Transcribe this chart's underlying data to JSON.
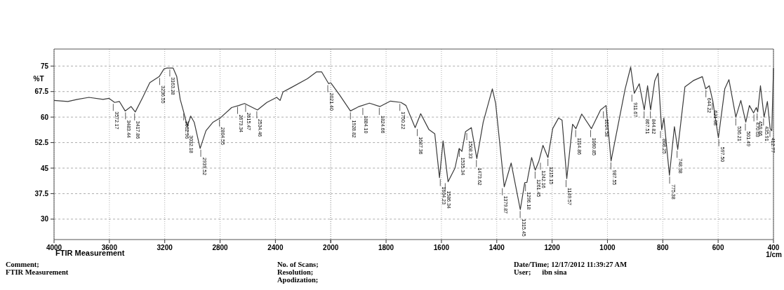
{
  "chart_data": [
    {
      "type": "line",
      "ylabel": "%T",
      "xlim": [
        4000,
        2000
      ],
      "xticks": [
        4000,
        3600,
        3200,
        2800,
        2400,
        2000
      ],
      "ylim": [
        24,
        80
      ],
      "yticks": [
        30,
        37.5,
        45,
        52.5,
        60,
        67.5,
        75
      ],
      "grid": true,
      "line_style": "solid",
      "marker": "none",
      "series": [
        {
          "color": "#3a3a3a",
          "x": [
            4000,
            3900,
            3832,
            3748,
            3646,
            3602,
            3562,
            3528,
            3486,
            3443,
            3413,
            3359,
            3308,
            3240,
            3206,
            3186,
            3139,
            3113,
            3088,
            3063,
            3037,
            3012,
            2987,
            2944,
            2902,
            2851,
            2800,
            2716,
            2665,
            2623,
            2530,
            2462,
            2391,
            2366,
            2345,
            2289,
            2168,
            2102,
            2066,
            2015,
            2000
          ],
          "values": [
            64.9,
            64.6,
            65.2,
            65.8,
            65.2,
            65.5,
            64.3,
            64.6,
            61.8,
            63.1,
            61.5,
            65.8,
            70.1,
            71.9,
            74.1,
            74.4,
            74.4,
            71.9,
            65.2,
            61.5,
            57.3,
            60.3,
            58.5,
            50.8,
            56.0,
            58.5,
            59.7,
            62.8,
            63.4,
            64.0,
            62.1,
            64.3,
            65.8,
            64.9,
            67.4,
            68.6,
            71.3,
            73.3,
            73.3,
            69.8,
            70.1
          ]
        }
      ],
      "annotations": [
        "FTIR Measurement",
        "Comment;",
        "FTIR Measurement",
        "No. of Scans;",
        "Resolution;",
        "Apodization;",
        "Date/Time; 12/17/2012 11:39:27 AM",
        "User;      ibn sina",
        {
          "text": "3572.17",
          "x": 3572.17,
          "y": 64.3
        },
        {
          "text": "3483.44",
          "x": 3483.44,
          "y": 61.8
        },
        {
          "text": "3417.86",
          "x": 3417.86,
          "y": 61.5
        },
        {
          "text": "3236.55",
          "x": 3236.55,
          "y": 71.9
        },
        {
          "text": "3163.28",
          "x": 3163.28,
          "y": 74.4
        },
        {
          "text": "3062.96",
          "x": 3062.96,
          "y": 61.5
        },
        {
          "text": "3032.18",
          "x": 3032.18,
          "y": 57.3
        },
        {
          "text": "2939.52",
          "x": 2939.52,
          "y": 50.8
        },
        {
          "text": "2804.55",
          "x": 2804.55,
          "y": 59.7
        },
        {
          "text": "2673.34",
          "x": 2673.34,
          "y": 63.4
        },
        {
          "text": "2615.47",
          "x": 2615.47,
          "y": 64.0
        },
        {
          "text": "2534.46",
          "x": 2534.46,
          "y": 62.1
        },
        {
          "text": "2021.40",
          "x": 2021.4,
          "y": 69.8
        }
      ]
    },
    {
      "type": "line",
      "xlabel": "1/cm",
      "xlim": [
        2000,
        400
      ],
      "xticks": [
        {
          "value": 2000,
          "label": null
        },
        1800,
        1600,
        1400,
        1200,
        1000,
        800,
        600,
        400
      ],
      "ylim": [
        24,
        80
      ],
      "yticks": [
        30,
        37.5,
        45,
        52.5,
        60,
        67.5,
        75
      ],
      "grid": true,
      "line_style": "solid",
      "marker": "none",
      "tick_labels": "x",
      "series": [
        {
          "color": "#3a3a3a",
          "x": [
            2000,
            1967,
            1929,
            1898,
            1860,
            1822,
            1784,
            1746,
            1728,
            1695,
            1675,
            1645,
            1624,
            1607,
            1594,
            1576,
            1551,
            1536,
            1526,
            1513,
            1492,
            1472,
            1449,
            1416,
            1404,
            1373,
            1348,
            1315,
            1299,
            1291,
            1274,
            1261,
            1248,
            1233,
            1215,
            1198,
            1177,
            1164,
            1147,
            1126,
            1114,
            1093,
            1058,
            1025,
            1005,
            987,
            961,
            936,
            916,
            903,
            885,
            867,
            855,
            844,
            829,
            817,
            804,
            796,
            776,
            758,
            746,
            720,
            690,
            657,
            645,
            632,
            619,
            599,
            576,
            561,
            536,
            518,
            500,
            487,
            472,
            462,
            457,
            447,
            434,
            422,
            412,
            406,
            400
          ],
          "values": [
            70.1,
            66.4,
            61.8,
            63.1,
            64.1,
            63.1,
            64.7,
            64.3,
            63.4,
            56.9,
            61.0,
            56.3,
            55.1,
            42.2,
            53.0,
            41.0,
            45.0,
            50.8,
            49.9,
            55.7,
            56.9,
            47.8,
            58.5,
            68.3,
            64.0,
            39.5,
            46.5,
            32.8,
            40.7,
            40.8,
            48.1,
            44.4,
            47.0,
            51.7,
            48.1,
            56.6,
            59.7,
            59.1,
            41.9,
            57.9,
            56.6,
            60.9,
            56.6,
            62.1,
            63.4,
            47.1,
            57.9,
            68.3,
            74.7,
            67.0,
            69.8,
            62.1,
            69.2,
            62.1,
            70.7,
            72.9,
            56.3,
            59.7,
            42.9,
            57.2,
            50.5,
            68.9,
            70.7,
            71.9,
            68.3,
            69.2,
            64.6,
            53.9,
            68.3,
            71.0,
            60.0,
            64.9,
            58.5,
            63.4,
            61.2,
            62.8,
            61.5,
            69.2,
            60.0,
            64.6,
            56.6,
            56.0,
            74.4
          ]
        }
      ],
      "annotations": [
        {
          "text": "1928.82",
          "x": 1928.82,
          "y": 61.8
        },
        {
          "text": "1884.10",
          "x": 1884.1,
          "y": 63.1
        },
        {
          "text": "1824.66",
          "x": 1824.66,
          "y": 63.1
        },
        {
          "text": "1750.22",
          "x": 1750.22,
          "y": 64.3
        },
        {
          "text": "1687.36",
          "x": 1687.36,
          "y": 56.9
        },
        {
          "text": "1604.23",
          "x": 1604.23,
          "y": 42.2
        },
        {
          "text": "1586.34",
          "x": 1586.34,
          "y": 41.0
        },
        {
          "text": "1535.34",
          "x": 1535.34,
          "y": 50.8
        },
        {
          "text": "1508.33",
          "x": 1508.33,
          "y": 55.7
        },
        {
          "text": "1473.62",
          "x": 1473.62,
          "y": 47.8
        },
        {
          "text": "1379.87",
          "x": 1379.87,
          "y": 39.5
        },
        {
          "text": "1315.45",
          "x": 1315.45,
          "y": 32.8
        },
        {
          "text": "1296.18",
          "x": 1296.18,
          "y": 40.7
        },
        {
          "text": "1261.45",
          "x": 1261.45,
          "y": 44.4
        },
        {
          "text": "1242.16",
          "x": 1242.16,
          "y": 47.0
        },
        {
          "text": "1215.15",
          "x": 1215.15,
          "y": 48.1
        },
        {
          "text": "1149.57",
          "x": 1149.57,
          "y": 41.9
        },
        {
          "text": "1114.86",
          "x": 1114.86,
          "y": 56.6
        },
        {
          "text": "1060.85",
          "x": 1060.85,
          "y": 56.6
        },
        {
          "text": "1014.58",
          "x": 1014.58,
          "y": 62.1
        },
        {
          "text": "987.55",
          "x": 987.55,
          "y": 47.1
        },
        {
          "text": "911.67",
          "x": 911.67,
          "y": 67.0
        },
        {
          "text": "867.51",
          "x": 867.51,
          "y": 62.1
        },
        {
          "text": "844.82",
          "x": 844.82,
          "y": 62.1
        },
        {
          "text": "808.25",
          "x": 808.25,
          "y": 56.3
        },
        {
          "text": "775.38",
          "x": 775.38,
          "y": 42.9
        },
        {
          "text": "748.38",
          "x": 748.38,
          "y": 50.5
        },
        {
          "text": "644.22",
          "x": 644.22,
          "y": 68.3
        },
        {
          "text": "621.08",
          "x": 621.08,
          "y": 64.6
        },
        {
          "text": "597.50",
          "x": 597.5,
          "y": 53.9
        },
        {
          "text": "536.21",
          "x": 536.21,
          "y": 60.0
        },
        {
          "text": "501.49",
          "x": 501.49,
          "y": 58.5
        },
        {
          "text": "470.63",
          "x": 470.63,
          "y": 61.2
        },
        {
          "text": "459.06",
          "x": 459.06,
          "y": 61.5
        },
        {
          "text": "435.91",
          "x": 435.91,
          "y": 60.0
        },
        {
          "text": "412.77",
          "x": 412.77,
          "y": 56.6
        }
      ]
    }
  ]
}
